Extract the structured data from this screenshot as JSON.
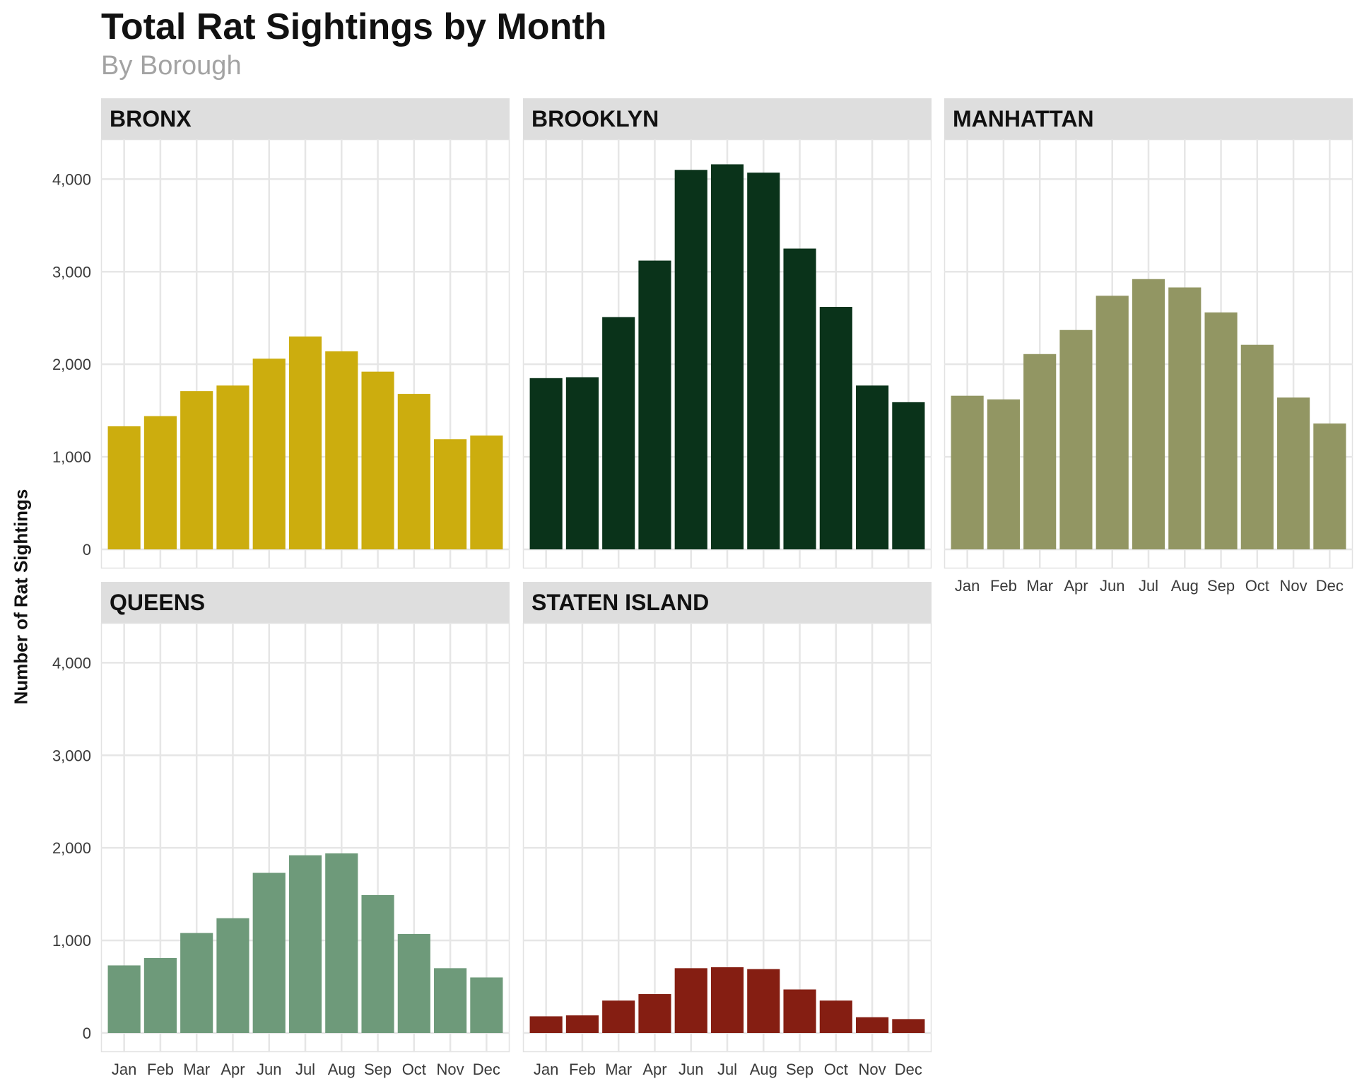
{
  "chart_data": {
    "type": "bar",
    "title": "Total Rat Sightings by Month",
    "subtitle": "By Borough",
    "ylabel": "Number of Rat Sightings",
    "xlabel": "",
    "ylim": [
      0,
      4400
    ],
    "yticks": [
      0,
      1000,
      2000,
      3000,
      4000
    ],
    "ytick_labels": [
      "0",
      "1,000",
      "2,000",
      "3,000",
      "4,000"
    ],
    "grid": true,
    "legend": "none",
    "categories": [
      "Jan",
      "Feb",
      "Mar",
      "Apr",
      "Jun",
      "Jul",
      "Aug",
      "Sep",
      "Oct",
      "Nov",
      "Dec"
    ],
    "facets": [
      {
        "name": "BRONX",
        "color": "#CCAD0E",
        "values": [
          1330,
          1440,
          1710,
          1770,
          2060,
          2300,
          2140,
          1920,
          1680,
          1190,
          1230
        ]
      },
      {
        "name": "BROOKLYN",
        "color": "#0A331A",
        "values": [
          1850,
          1860,
          2510,
          3120,
          4100,
          4160,
          4070,
          3250,
          2620,
          1770,
          1590
        ]
      },
      {
        "name": "MANHATTAN",
        "color": "#929663",
        "values": [
          1660,
          1620,
          2110,
          2370,
          2740,
          2920,
          2830,
          2560,
          2210,
          1640,
          1360
        ]
      },
      {
        "name": "QUEENS",
        "color": "#6E9A7A",
        "values": [
          730,
          810,
          1080,
          1240,
          1730,
          1920,
          1940,
          1490,
          1070,
          700,
          600
        ]
      },
      {
        "name": "STATEN ISLAND",
        "color": "#851E12",
        "values": [
          180,
          190,
          350,
          420,
          700,
          710,
          690,
          470,
          350,
          170,
          150
        ]
      }
    ]
  }
}
